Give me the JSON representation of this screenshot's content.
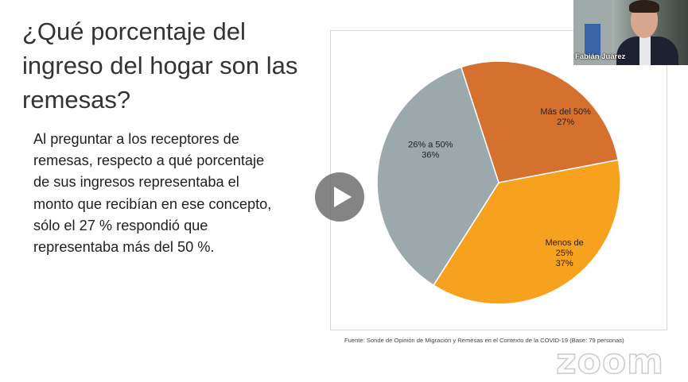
{
  "slide": {
    "title": "¿Qué porcentaje del ingreso del hogar son las remesas?",
    "body": "Al preguntar a los receptores de remesas, respecto a qué porcentaje de sus ingresos representaba el monto que recibían en ese concepto, sólo el 27 % respondió que representaba más del 50 %.",
    "source": "Fuente: Sonde de Opinión de Migración y Remesas en el Contexto de la COVID-19 (Base: 79 personas)"
  },
  "chart_data": {
    "type": "pie",
    "title": "",
    "slices": [
      {
        "label": "Más del 50%",
        "value": 27,
        "value_label": "27%",
        "color": "#d5702f"
      },
      {
        "label": "Menos de 25%",
        "value": 37,
        "value_label": "37%",
        "color": "#f7a21e"
      },
      {
        "label": "26% a 50%",
        "value": 36,
        "value_label": "36%",
        "color": "#9ba9ad"
      }
    ],
    "start_angle_deg": -18,
    "direction": "clockwise",
    "legend": "none"
  },
  "video": {
    "participant_name": "Fabián Juárez",
    "play_icon": "play-icon",
    "watermark": "zoom"
  }
}
